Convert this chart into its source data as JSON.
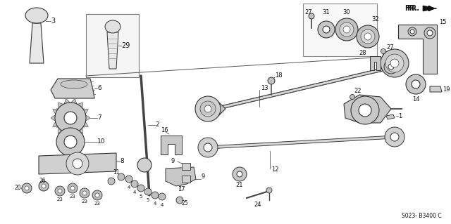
{
  "background_color": "#ffffff",
  "diagram_code": "S023- B3400 C",
  "fr_label": "FR.",
  "parts_data": {
    "knob_left_label": "3",
    "knob_box_label": "29",
    "boot_label": "6",
    "ring_gear_label": "7",
    "rubber_ring_label": "10",
    "plate_label": "8",
    "lever_label": "2",
    "clip_label": "16",
    "pin1_label": "9",
    "pin2_label": "9",
    "selector_label": "17",
    "bolt25_label": "25",
    "w11_label": "11",
    "n4a_label": "4",
    "n5a_label": "5",
    "n5b_label": "5",
    "n4b_label": "4",
    "w20_label": "20",
    "b23a_label": "23",
    "b23b_label": "23",
    "b23c_label": "23",
    "b23d_label": "23",
    "b26_label": "26",
    "shift_rod_label": "13",
    "bolt18_label": "18",
    "select_rod_label": "12",
    "bolt22_label": "22",
    "bolt1_label": "1",
    "mount15_label": "15",
    "bracket28_label": "28",
    "bolt27a_label": "27",
    "bushing14_label": "14",
    "pin19_label": "19",
    "bolt27b_label": "27",
    "washer31_label": "31",
    "bushing30_label": "30",
    "bushing32_label": "32",
    "washer21_label": "21",
    "screw24_label": "24"
  }
}
